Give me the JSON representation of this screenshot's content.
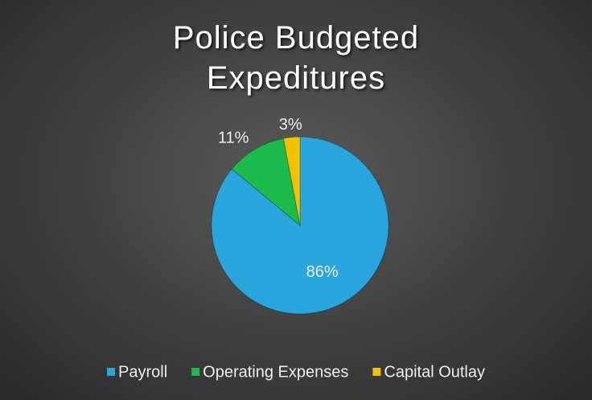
{
  "chart_data": {
    "type": "pie",
    "title": "Police Budgeted Expeditures",
    "categories": [
      "Payroll",
      "Operating Expenses",
      "Capital Outlay"
    ],
    "values": [
      86,
      11,
      3
    ],
    "value_labels": [
      "86%",
      "11%",
      "3%"
    ],
    "colors": [
      "#29a6de",
      "#1dbb4c",
      "#f2c200"
    ],
    "legend": "bottom"
  }
}
